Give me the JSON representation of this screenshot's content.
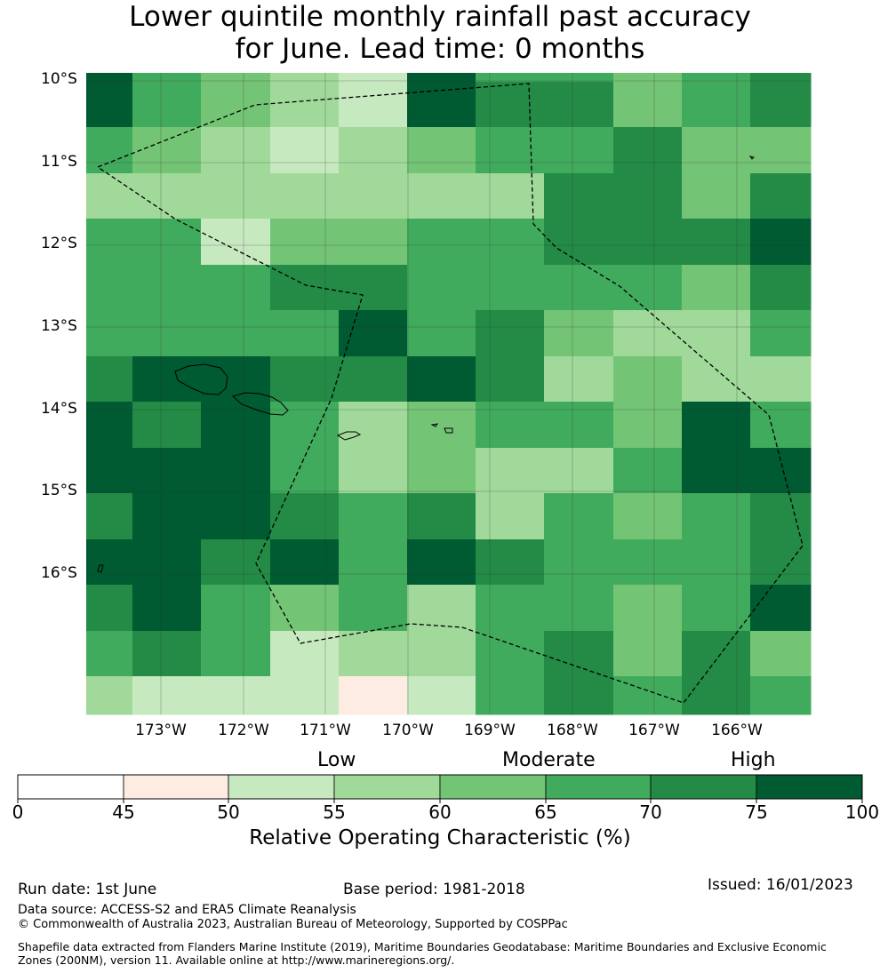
{
  "title_line1": "Lower quintile monthly rainfall past accuracy",
  "title_line2": "for June. Lead time: 0 months",
  "lat_labels": [
    "10°S",
    "11°S",
    "12°S",
    "13°S",
    "14°S",
    "15°S",
    "16°S"
  ],
  "lon_labels": [
    "173°W",
    "172°W",
    "171°W",
    "170°W",
    "169°W",
    "168°W",
    "167°W",
    "166°W"
  ],
  "grid": {
    "x_edges": [
      97,
      149,
      226,
      304,
      381,
      458,
      535,
      612,
      690,
      767,
      844,
      912
    ],
    "y_edges": [
      82,
      92,
      143,
      195,
      246,
      298,
      349,
      401,
      452,
      504,
      555,
      607,
      658,
      710,
      761,
      804
    ],
    "values": [
      [
        80,
        67,
        62,
        57,
        52,
        80,
        67,
        67,
        62,
        67,
        72
      ],
      [
        80,
        67,
        62,
        57,
        52,
        80,
        72,
        72,
        62,
        67,
        72
      ],
      [
        67,
        62,
        57,
        52,
        57,
        62,
        67,
        67,
        72,
        62,
        62
      ],
      [
        57,
        57,
        57,
        57,
        57,
        57,
        57,
        72,
        72,
        62,
        72
      ],
      [
        67,
        67,
        52,
        62,
        62,
        67,
        67,
        72,
        72,
        72,
        80
      ],
      [
        67,
        67,
        67,
        72,
        72,
        67,
        67,
        67,
        67,
        62,
        72
      ],
      [
        67,
        67,
        67,
        67,
        80,
        67,
        72,
        62,
        57,
        57,
        67
      ],
      [
        72,
        80,
        80,
        72,
        72,
        80,
        72,
        57,
        62,
        57,
        57
      ],
      [
        80,
        72,
        80,
        67,
        57,
        62,
        67,
        67,
        62,
        80,
        67
      ],
      [
        80,
        80,
        80,
        67,
        57,
        62,
        57,
        57,
        67,
        80,
        80
      ],
      [
        72,
        80,
        80,
        72,
        67,
        72,
        57,
        67,
        62,
        67,
        72
      ],
      [
        80,
        80,
        72,
        80,
        67,
        80,
        72,
        67,
        67,
        67,
        72
      ],
      [
        72,
        80,
        67,
        62,
        67,
        57,
        67,
        67,
        62,
        67,
        80
      ],
      [
        67,
        72,
        67,
        52,
        57,
        57,
        67,
        72,
        62,
        72,
        62
      ],
      [
        57,
        52,
        52,
        52,
        47,
        52,
        67,
        72,
        67,
        72,
        67
      ]
    ]
  },
  "categories": [
    "Low",
    "Moderate",
    "High"
  ],
  "colorbar": {
    "ticks": [
      "0",
      "45",
      "50",
      "55",
      "60",
      "65",
      "70",
      "75",
      "100"
    ],
    "colors": [
      "#ffffff",
      "#fdece1",
      "#c7e9c0",
      "#a1d99b",
      "#74c476",
      "#41ab5d",
      "#238b45",
      "#005a32"
    ],
    "label": "Relative Operating Characteristic (%)"
  },
  "footer": {
    "run_date": "Run date: 1st June",
    "base_period": "Base period: 1981-2018",
    "issued": "Issued: 16/01/2023",
    "data_source": "Data source: ACCESS-S2 and ERA5 Climate Reanalysis",
    "copyright": "© Commonwealth of Australia 2023, Australian Bureau of Meteorology, Supported by COSPPac",
    "shapefile": "Shapefile data extracted from Flanders Marine Institute (2019), Maritime Boundaries Geodatabase: Maritime Boundaries and Exclusive Economic Zones (200NM), version 11. Available online at http://www.marineregions.org/."
  }
}
